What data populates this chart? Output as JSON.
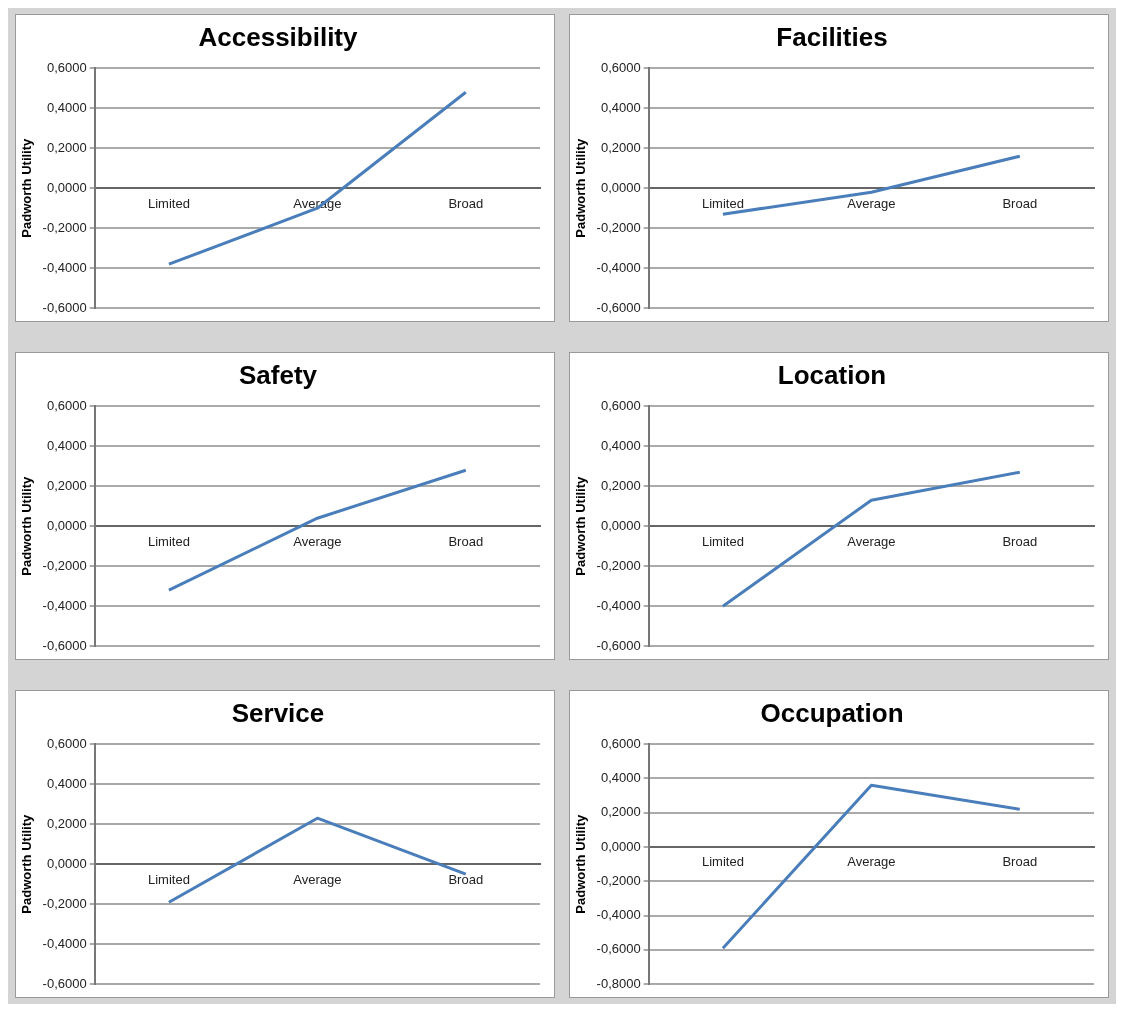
{
  "chart_data": [
    {
      "type": "line",
      "title": "Accessibility",
      "ylabel": "Padworth Utility",
      "categories": [
        "Limited",
        "Average",
        "Broad"
      ],
      "series": [
        {
          "color": "#4a7ebb",
          "values": [
            -0.38,
            -0.1,
            0.48
          ]
        }
      ],
      "ylim": [
        -0.6,
        0.6
      ],
      "yticks": [
        {
          "value": -0.6,
          "label": "-0,6000"
        },
        {
          "value": -0.4,
          "label": "-0,4000"
        },
        {
          "value": -0.2,
          "label": "-0,2000"
        },
        {
          "value": 0,
          "label": "0,0000"
        },
        {
          "value": 0.2,
          "label": "0,2000"
        },
        {
          "value": 0.4,
          "label": "0,4000"
        },
        {
          "value": 0.6,
          "label": "0,6000"
        }
      ],
      "grid": "y",
      "marker": "none"
    },
    {
      "type": "line",
      "title": "Facilities",
      "ylabel": "Padworth Utility",
      "categories": [
        "Limited",
        "Average",
        "Broad"
      ],
      "series": [
        {
          "color": "#4a7ebb",
          "values": [
            -0.13,
            -0.02,
            0.16
          ]
        }
      ],
      "ylim": [
        -0.6,
        0.6
      ],
      "yticks": [
        {
          "value": -0.6,
          "label": "-0,6000"
        },
        {
          "value": -0.4,
          "label": "-0,4000"
        },
        {
          "value": -0.2,
          "label": "-0,2000"
        },
        {
          "value": 0,
          "label": "0,0000"
        },
        {
          "value": 0.2,
          "label": "0,2000"
        },
        {
          "value": 0.4,
          "label": "0,4000"
        },
        {
          "value": 0.6,
          "label": "0,6000"
        }
      ],
      "grid": "y",
      "marker": "none"
    },
    {
      "type": "line",
      "title": "Safety",
      "ylabel": "Padworth Utility",
      "categories": [
        "Limited",
        "Average",
        "Broad"
      ],
      "series": [
        {
          "color": "#4a7ebb",
          "values": [
            -0.32,
            0.04,
            0.28
          ]
        }
      ],
      "ylim": [
        -0.6,
        0.6
      ],
      "yticks": [
        {
          "value": -0.6,
          "label": "-0,6000"
        },
        {
          "value": -0.4,
          "label": "-0,4000"
        },
        {
          "value": -0.2,
          "label": "-0,2000"
        },
        {
          "value": 0,
          "label": "0,0000"
        },
        {
          "value": 0.2,
          "label": "0,2000"
        },
        {
          "value": 0.4,
          "label": "0,4000"
        },
        {
          "value": 0.6,
          "label": "0,6000"
        }
      ],
      "grid": "y",
      "marker": "none"
    },
    {
      "type": "line",
      "title": "Location",
      "ylabel": "Padworth Utility",
      "categories": [
        "Limited",
        "Average",
        "Broad"
      ],
      "series": [
        {
          "color": "#4a7ebb",
          "values": [
            -0.4,
            0.13,
            0.27
          ]
        }
      ],
      "ylim": [
        -0.6,
        0.6
      ],
      "yticks": [
        {
          "value": -0.6,
          "label": "-0,6000"
        },
        {
          "value": -0.4,
          "label": "-0,4000"
        },
        {
          "value": -0.2,
          "label": "-0,2000"
        },
        {
          "value": 0,
          "label": "0,0000"
        },
        {
          "value": 0.2,
          "label": "0,2000"
        },
        {
          "value": 0.4,
          "label": "0,4000"
        },
        {
          "value": 0.6,
          "label": "0,6000"
        }
      ],
      "grid": "y",
      "marker": "none"
    },
    {
      "type": "line",
      "title": "Service",
      "ylabel": "Padworth Utility",
      "categories": [
        "Limited",
        "Average",
        "Broad"
      ],
      "series": [
        {
          "color": "#4a7ebb",
          "values": [
            -0.19,
            0.23,
            -0.05
          ]
        }
      ],
      "ylim": [
        -0.6,
        0.6
      ],
      "yticks": [
        {
          "value": -0.6,
          "label": "-0,6000"
        },
        {
          "value": -0.4,
          "label": "-0,4000"
        },
        {
          "value": -0.2,
          "label": "-0,2000"
        },
        {
          "value": 0,
          "label": "0,0000"
        },
        {
          "value": 0.2,
          "label": "0,2000"
        },
        {
          "value": 0.4,
          "label": "0,4000"
        },
        {
          "value": 0.6,
          "label": "0,6000"
        }
      ],
      "grid": "y",
      "marker": "none"
    },
    {
      "type": "line",
      "title": "Occupation",
      "ylabel": "Padworth Utility",
      "categories": [
        "Limited",
        "Average",
        "Broad"
      ],
      "series": [
        {
          "color": "#4a7ebb",
          "values": [
            -0.59,
            0.36,
            0.22
          ]
        }
      ],
      "ylim": [
        -0.8,
        0.6
      ],
      "yticks": [
        {
          "value": -0.8,
          "label": "-0,8000"
        },
        {
          "value": -0.6,
          "label": "-0,6000"
        },
        {
          "value": -0.4,
          "label": "-0,4000"
        },
        {
          "value": -0.2,
          "label": "-0,2000"
        },
        {
          "value": 0,
          "label": "0,0000"
        },
        {
          "value": 0.2,
          "label": "0,2000"
        },
        {
          "value": 0.4,
          "label": "0,4000"
        },
        {
          "value": 0.6,
          "label": "0,6000"
        }
      ],
      "grid": "y",
      "marker": "none"
    }
  ]
}
